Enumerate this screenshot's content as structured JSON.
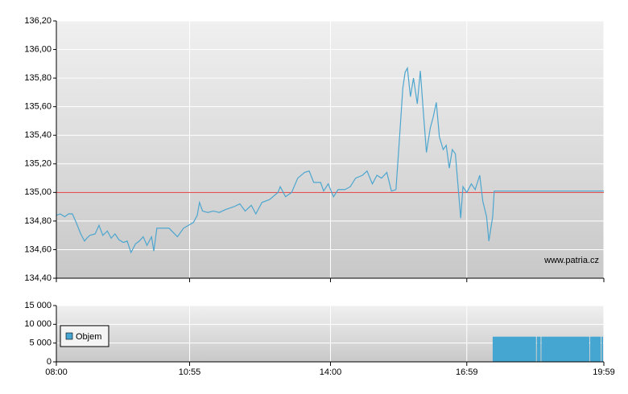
{
  "chart_data": [
    {
      "type": "line",
      "x": [
        "08:00",
        "08:05",
        "08:11",
        "08:16",
        "08:21",
        "08:26",
        "08:32",
        "08:37",
        "08:40",
        "08:44",
        "08:51",
        "08:56",
        "09:01",
        "09:07",
        "09:12",
        "09:17",
        "09:22",
        "09:28",
        "09:33",
        "09:38",
        "09:44",
        "09:49",
        "09:54",
        "09:59",
        "10:05",
        "10:08",
        "10:12",
        "10:28",
        "10:39",
        "10:47",
        "11:00",
        "11:05",
        "11:08",
        "11:12",
        "11:19",
        "11:26",
        "11:34",
        "11:42",
        "11:53",
        "12:01",
        "12:08",
        "12:16",
        "12:22",
        "12:30",
        "12:40",
        "12:51",
        "12:54",
        "13:01",
        "13:09",
        "13:17",
        "13:26",
        "13:32",
        "13:38",
        "13:47",
        "13:51",
        "13:57",
        "14:04",
        "14:10",
        "14:19",
        "14:26",
        "14:33",
        "14:42",
        "14:48",
        "14:55",
        "15:01",
        "15:07",
        "15:14",
        "15:20",
        "15:26",
        "15:30",
        "15:35",
        "15:38",
        "15:41",
        "15:45",
        "15:49",
        "15:54",
        "15:58",
        "16:02",
        "16:06",
        "16:11",
        "16:15",
        "16:19",
        "16:23",
        "16:28",
        "16:32",
        "16:36",
        "16:40",
        "16:44",
        "16:49",
        "16:51",
        "16:54",
        "16:59",
        "17:05",
        "17:10",
        "17:16",
        "17:20",
        "17:25",
        "17:28",
        "17:33",
        "17:35",
        "19:59"
      ],
      "series": [
        {
          "color": "#4da6cf",
          "values": [
            134.84,
            134.85,
            134.83,
            134.85,
            134.85,
            134.79,
            134.71,
            134.66,
            134.68,
            134.7,
            134.71,
            134.77,
            134.7,
            134.73,
            134.68,
            134.71,
            134.67,
            134.65,
            134.66,
            134.58,
            134.64,
            134.66,
            134.69,
            134.63,
            134.69,
            134.59,
            134.75,
            134.75,
            134.69,
            134.75,
            134.79,
            134.84,
            134.93,
            134.87,
            134.86,
            134.87,
            134.86,
            134.88,
            134.9,
            134.92,
            134.87,
            134.91,
            134.85,
            134.93,
            134.95,
            135.0,
            135.04,
            134.97,
            135.0,
            135.1,
            135.14,
            135.15,
            135.07,
            135.07,
            135.01,
            135.06,
            134.97,
            135.02,
            135.02,
            135.04,
            135.1,
            135.12,
            135.15,
            135.06,
            135.12,
            135.1,
            135.14,
            135.01,
            135.02,
            135.33,
            135.73,
            135.84,
            135.87,
            135.67,
            135.8,
            135.62,
            135.85,
            135.56,
            135.28,
            135.45,
            135.53,
            135.63,
            135.39,
            135.3,
            135.33,
            135.17,
            135.3,
            135.27,
            134.95,
            134.82,
            135.04,
            135.0,
            135.06,
            135.02,
            135.12,
            134.94,
            134.83,
            134.66,
            134.83,
            135.01,
            135.01
          ]
        }
      ],
      "reference_line": 135,
      "reference_color": "#e03a3a",
      "xlim": [
        "08:00",
        "19:59"
      ],
      "xticks": [
        "08:00",
        "10:55",
        "14:00",
        "16:59",
        "19:59"
      ],
      "ylim": [
        134.4,
        136.2
      ],
      "yticks": [
        {
          "value": 134.4,
          "label": "134,40"
        },
        {
          "value": 134.6,
          "label": "134,60"
        },
        {
          "value": 134.8,
          "label": "134,80"
        },
        {
          "value": 135,
          "label": "135,00"
        },
        {
          "value": 135.2,
          "label": "135,20"
        },
        {
          "value": 135.4,
          "label": "135,40"
        },
        {
          "value": 135.6,
          "label": "135,60"
        },
        {
          "value": 135.8,
          "label": "135,80"
        },
        {
          "value": 136,
          "label": "136,00"
        },
        {
          "value": 136.2,
          "label": "136,20"
        }
      ],
      "grid": true,
      "watermark": "www.patria.cz"
    },
    {
      "type": "bar",
      "x": [
        "17:33",
        "18:31",
        "18:37",
        "19:41",
        "19:56"
      ],
      "x_end": "19:59",
      "series": [
        {
          "name": "Objem",
          "color": "#46a6d2",
          "values": [
            6700,
            6700,
            6700,
            6700,
            6700
          ]
        }
      ],
      "xlim": [
        "08:00",
        "19:59"
      ],
      "xticks": [
        "08:00",
        "10:55",
        "14:00",
        "16:59",
        "19:59"
      ],
      "ylim": [
        0,
        15000
      ],
      "yticks": [
        0,
        {
          "value": 5000,
          "label": "5 000"
        },
        {
          "value": 10000,
          "label": "10 000"
        },
        {
          "value": 15000,
          "label": "15 000"
        }
      ],
      "grid": true,
      "legend": "left"
    }
  ]
}
